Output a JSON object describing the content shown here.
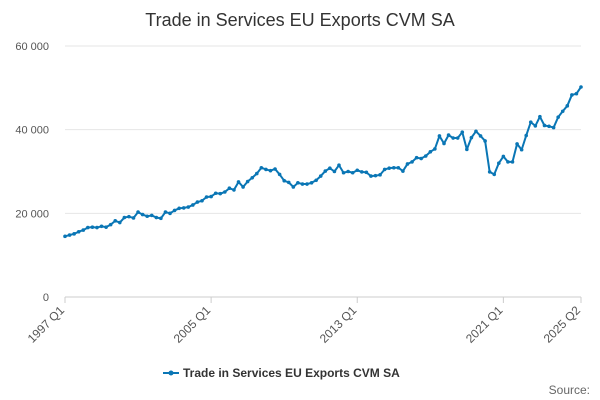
{
  "chart_data": {
    "type": "line",
    "title": "Trade in Services EU Exports CVM SA",
    "xlabel": "",
    "ylabel": "",
    "ylim": [
      0,
      60000
    ],
    "yticks": [
      "0",
      "20 000",
      "40 000",
      "60 000"
    ],
    "xticks": [
      "1997 Q1",
      "2005 Q1",
      "2013 Q1",
      "2021 Q1",
      "2025 Q2"
    ],
    "grid": true,
    "legend_position": "bottom",
    "source_label": "Source:",
    "series_color": "#0a76b5",
    "series": [
      {
        "name": "Trade in Services EU Exports CVM SA",
        "x": [
          "1997 Q1",
          "1997 Q2",
          "1997 Q3",
          "1997 Q4",
          "1998 Q1",
          "1998 Q2",
          "1998 Q3",
          "1998 Q4",
          "1999 Q1",
          "1999 Q2",
          "1999 Q3",
          "1999 Q4",
          "2000 Q1",
          "2000 Q2",
          "2000 Q3",
          "2000 Q4",
          "2001 Q1",
          "2001 Q2",
          "2001 Q3",
          "2001 Q4",
          "2002 Q1",
          "2002 Q2",
          "2002 Q3",
          "2002 Q4",
          "2003 Q1",
          "2003 Q2",
          "2003 Q3",
          "2003 Q4",
          "2004 Q1",
          "2004 Q2",
          "2004 Q3",
          "2004 Q4",
          "2005 Q1",
          "2005 Q2",
          "2005 Q3",
          "2005 Q4",
          "2006 Q1",
          "2006 Q2",
          "2006 Q3",
          "2006 Q4",
          "2007 Q1",
          "2007 Q2",
          "2007 Q3",
          "2007 Q4",
          "2008 Q1",
          "2008 Q2",
          "2008 Q3",
          "2008 Q4",
          "2009 Q1",
          "2009 Q2",
          "2009 Q3",
          "2009 Q4",
          "2010 Q1",
          "2010 Q2",
          "2010 Q3",
          "2010 Q4",
          "2011 Q1",
          "2011 Q2",
          "2011 Q3",
          "2011 Q4",
          "2012 Q1",
          "2012 Q2",
          "2012 Q3",
          "2012 Q4",
          "2013 Q1",
          "2013 Q2",
          "2013 Q3",
          "2013 Q4",
          "2014 Q1",
          "2014 Q2",
          "2014 Q3",
          "2014 Q4",
          "2015 Q1",
          "2015 Q2",
          "2015 Q3",
          "2015 Q4",
          "2016 Q1",
          "2016 Q2",
          "2016 Q3",
          "2016 Q4",
          "2017 Q1",
          "2017 Q2",
          "2017 Q3",
          "2017 Q4",
          "2018 Q1",
          "2018 Q2",
          "2018 Q3",
          "2018 Q4",
          "2019 Q1",
          "2019 Q2",
          "2019 Q3",
          "2019 Q4",
          "2020 Q1",
          "2020 Q2",
          "2020 Q3",
          "2020 Q4",
          "2021 Q1",
          "2021 Q2",
          "2021 Q3",
          "2021 Q4",
          "2022 Q1",
          "2022 Q2",
          "2022 Q3",
          "2022 Q4",
          "2023 Q1",
          "2023 Q2",
          "2023 Q3",
          "2023 Q4",
          "2024 Q1",
          "2024 Q2",
          "2024 Q3",
          "2024 Q4",
          "2025 Q1",
          "2025 Q2"
        ],
        "values": [
          14500,
          14800,
          15100,
          15600,
          16000,
          16600,
          16700,
          16600,
          16900,
          16700,
          17300,
          18200,
          17800,
          19000,
          19200,
          18900,
          20300,
          19700,
          19300,
          19500,
          19000,
          18800,
          20300,
          20000,
          20700,
          21200,
          21300,
          21500,
          22000,
          22700,
          23000,
          23900,
          24000,
          24800,
          24700,
          25100,
          26000,
          25600,
          27500,
          26300,
          27600,
          28500,
          29500,
          30900,
          30500,
          30200,
          30600,
          29300,
          27800,
          27400,
          26300,
          27300,
          27000,
          27000,
          27300,
          27900,
          28900,
          30100,
          30800,
          30000,
          31500,
          29700,
          30000,
          29700,
          30300,
          29900,
          29800,
          28900,
          29000,
          29200,
          30500,
          30800,
          30900,
          30900,
          30100,
          31800,
          32300,
          33300,
          33100,
          33700,
          34700,
          35400,
          38500,
          36700,
          38700,
          38000,
          38000,
          39400,
          35300,
          38100,
          39600,
          38500,
          37300,
          29900,
          29300,
          32000,
          33600,
          32300,
          32300,
          36600,
          35200,
          38600,
          41800,
          40900,
          43100,
          41000,
          40800,
          40500,
          43000,
          44400,
          45700,
          48300,
          48600,
          50200
        ]
      }
    ]
  }
}
